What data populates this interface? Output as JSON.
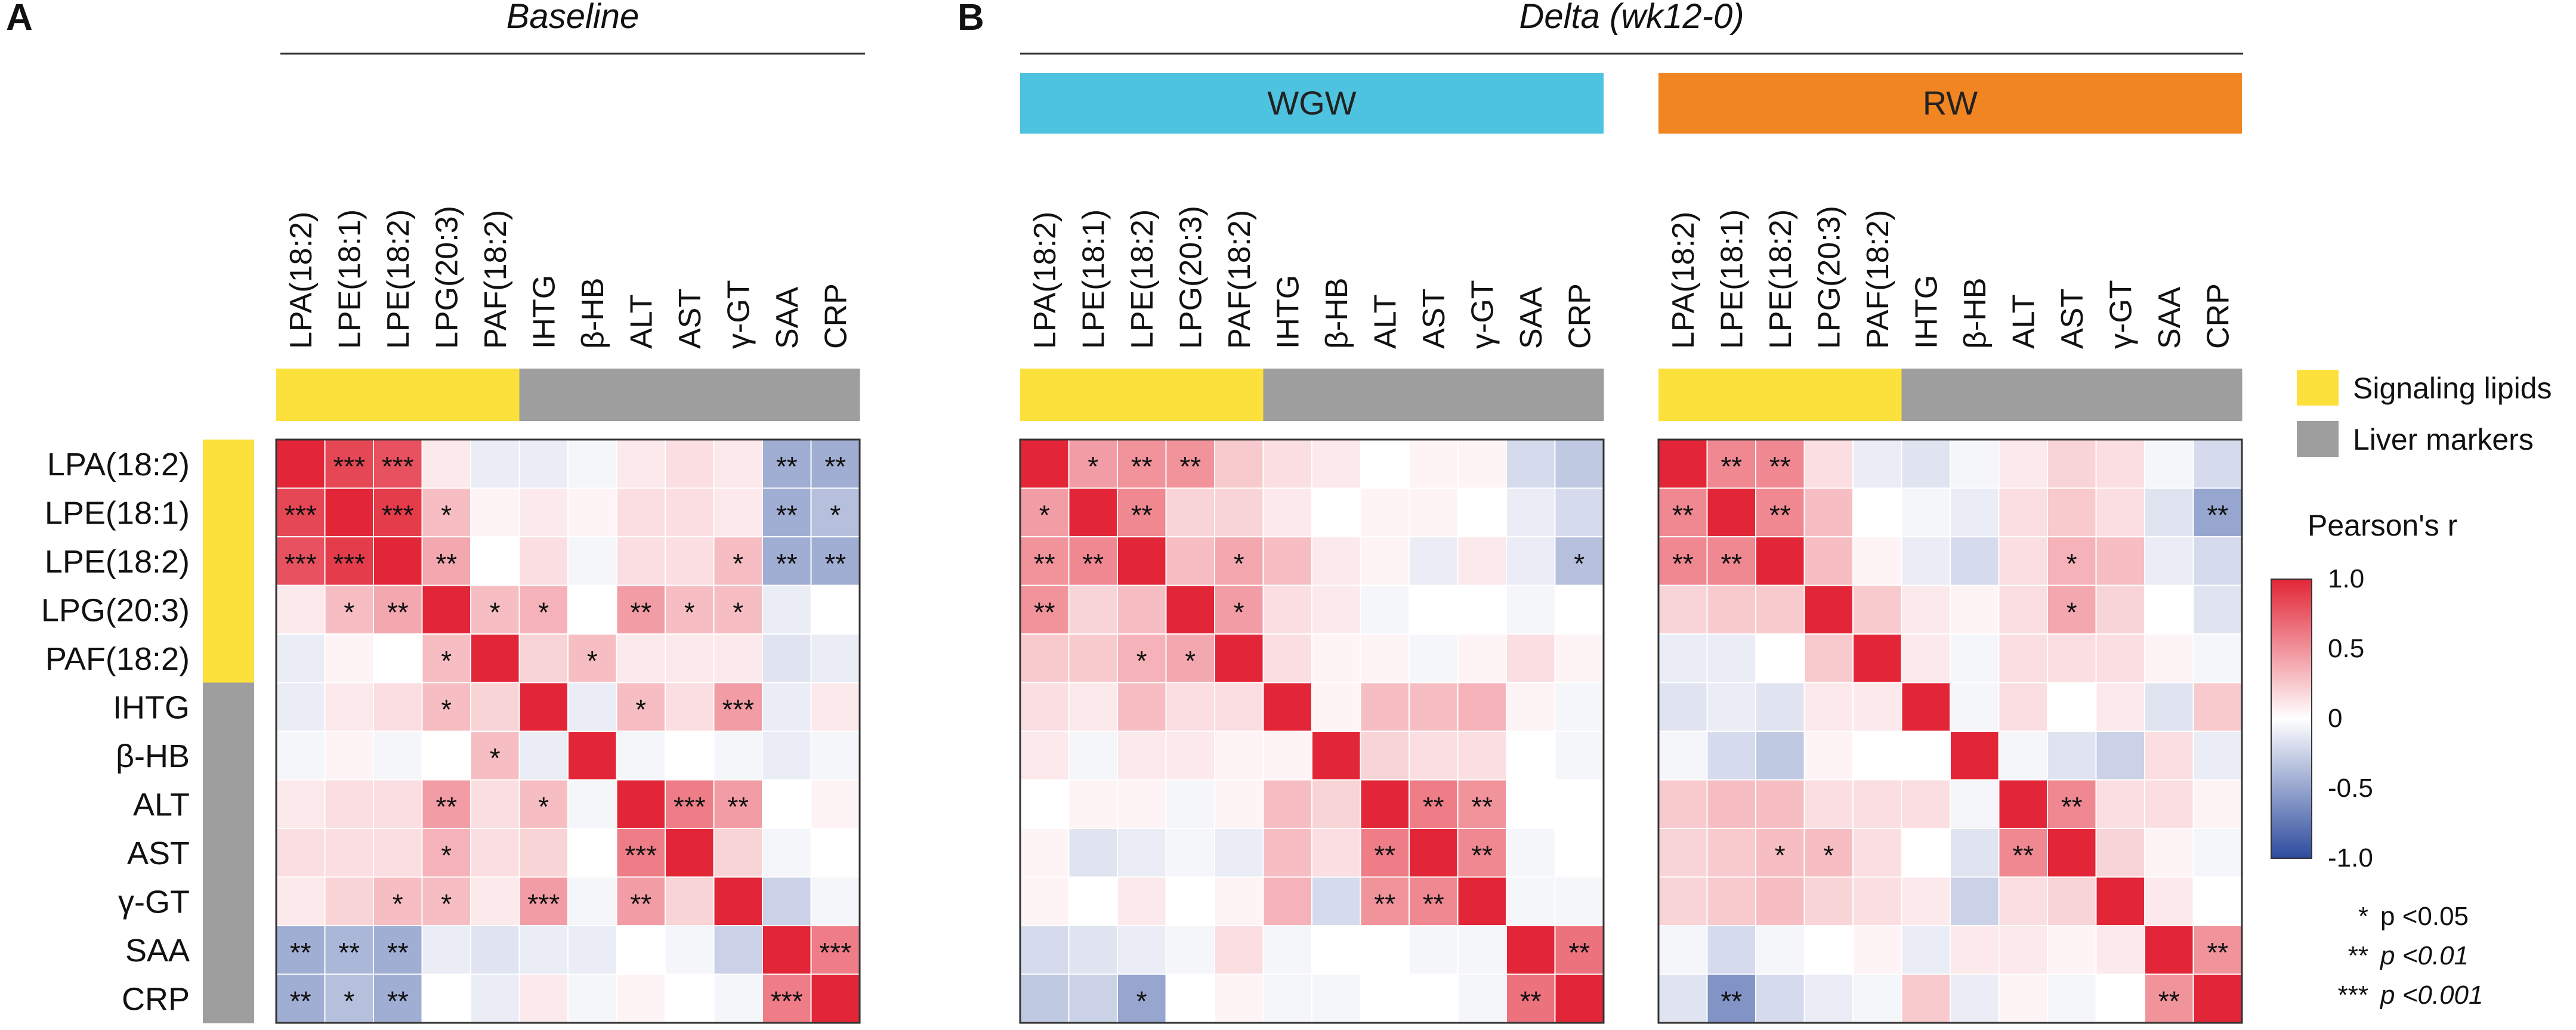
{
  "panel_labels": [
    "A",
    "B"
  ],
  "titles": {
    "baseline": "Baseline",
    "delta": "Delta (wk12-0)"
  },
  "group_labels": {
    "wgw": "WGW",
    "rw": "RW"
  },
  "colors": {
    "signaling": "#FCE13C",
    "liver": "#9E9E9E",
    "wgw": "#4EC3E0",
    "rw": "#F08522",
    "positive": "#E22637",
    "negative": "#2E4C9E",
    "grid": "#ffffff",
    "frame": "#333333"
  },
  "legend": {
    "signaling": "Signaling lipids",
    "liver": "Liver markers",
    "colorbar_title": "Pearson's r",
    "ticks": [
      "1.0",
      "0.5",
      "0",
      "-0.5",
      "-1.0"
    ],
    "sig_lines": [
      {
        "stars": "*",
        "text": "p <0.05"
      },
      {
        "stars": "**",
        "text": "p <0.01"
      },
      {
        "stars": "***",
        "text": "p <0.001"
      }
    ]
  },
  "chart_data": [
    {
      "type": "heatmap",
      "title": "Baseline",
      "variables": [
        "LPA(18:2)",
        "LPE(18:1)",
        "LPE(18:2)",
        "LPG(20:3)",
        "PAF(18:2)",
        "IHTG",
        "β-HB",
        "ALT",
        "AST",
        "γ-GT",
        "SAA",
        "CRP"
      ],
      "groups": [
        "signaling",
        "signaling",
        "signaling",
        "signaling",
        "signaling",
        "liver",
        "liver",
        "liver",
        "liver",
        "liver",
        "liver",
        "liver"
      ],
      "zlim": [
        -1,
        1
      ],
      "values": [
        [
          1.0,
          0.85,
          0.8,
          0.1,
          -0.1,
          -0.1,
          -0.05,
          0.1,
          0.15,
          0.1,
          -0.45,
          -0.45
        ],
        [
          0.85,
          1.0,
          0.9,
          0.3,
          0.05,
          0.1,
          0.05,
          0.15,
          0.15,
          0.1,
          -0.45,
          -0.35
        ],
        [
          0.8,
          0.9,
          1.0,
          0.4,
          0.0,
          0.15,
          -0.05,
          0.15,
          0.15,
          0.3,
          -0.45,
          -0.45
        ],
        [
          0.1,
          0.3,
          0.4,
          1.0,
          0.3,
          0.35,
          0.0,
          0.45,
          0.3,
          0.3,
          -0.1,
          0.0
        ],
        [
          -0.1,
          0.05,
          0.0,
          0.3,
          1.0,
          0.2,
          0.3,
          0.1,
          0.1,
          0.1,
          -0.15,
          -0.1
        ],
        [
          -0.1,
          0.1,
          0.15,
          0.3,
          0.2,
          1.0,
          -0.1,
          0.3,
          0.15,
          0.45,
          -0.1,
          0.1
        ],
        [
          -0.05,
          0.05,
          -0.05,
          0.0,
          0.3,
          -0.1,
          1.0,
          -0.05,
          0.0,
          -0.05,
          -0.1,
          -0.05
        ],
        [
          0.1,
          0.15,
          0.15,
          0.45,
          0.15,
          0.3,
          -0.05,
          1.0,
          0.6,
          0.45,
          0.0,
          0.05
        ],
        [
          0.15,
          0.15,
          0.15,
          0.35,
          0.15,
          0.2,
          0.0,
          0.6,
          1.0,
          0.2,
          -0.05,
          0.0
        ],
        [
          0.1,
          0.2,
          0.3,
          0.3,
          0.1,
          0.45,
          -0.05,
          0.45,
          0.2,
          1.0,
          -0.25,
          -0.05
        ],
        [
          -0.45,
          -0.4,
          -0.45,
          -0.1,
          -0.15,
          -0.1,
          -0.1,
          0.0,
          -0.05,
          -0.25,
          1.0,
          0.6
        ],
        [
          -0.45,
          -0.35,
          -0.45,
          0.0,
          -0.1,
          0.1,
          -0.05,
          0.05,
          0.0,
          -0.05,
          0.6,
          1.0
        ]
      ],
      "stars": [
        [
          "",
          "***",
          "***",
          "",
          "",
          "",
          "",
          "",
          "",
          "",
          "**",
          "**"
        ],
        [
          "***",
          "",
          "***",
          "*",
          "",
          "",
          "",
          "",
          "",
          "",
          "**",
          "*"
        ],
        [
          "***",
          "***",
          "",
          "**",
          "",
          "",
          "",
          "",
          "",
          "*",
          "**",
          "**"
        ],
        [
          "",
          "*",
          "**",
          "",
          "*",
          "*",
          "",
          "**",
          "*",
          "*",
          "",
          ""
        ],
        [
          "",
          "",
          "",
          "*",
          "",
          "",
          "*",
          "",
          "",
          "",
          "",
          ""
        ],
        [
          "",
          "",
          "",
          "*",
          "",
          "",
          "",
          "*",
          "",
          "***",
          "",
          ""
        ],
        [
          "",
          "",
          "",
          "",
          "*",
          "",
          "",
          "",
          "",
          "",
          "",
          ""
        ],
        [
          "",
          "",
          "",
          "**",
          "",
          "*",
          "",
          "",
          "***",
          "**",
          "",
          ""
        ],
        [
          "",
          "",
          "",
          "*",
          "",
          "",
          "",
          "***",
          "",
          "",
          "",
          ""
        ],
        [
          "",
          "",
          "*",
          "*",
          "",
          "***",
          "",
          "**",
          "",
          "",
          "",
          ""
        ],
        [
          "**",
          "**",
          "**",
          "",
          "",
          "",
          "",
          "",
          "",
          "",
          "",
          "***"
        ],
        [
          "**",
          "*",
          "**",
          "",
          "",
          "",
          "",
          "",
          "",
          "",
          "***",
          ""
        ]
      ]
    },
    {
      "type": "heatmap",
      "title": "WGW",
      "variables": [
        "LPA(18:2)",
        "LPE(18:1)",
        "LPE(18:2)",
        "LPG(20:3)",
        "PAF(18:2)",
        "IHTG",
        "β-HB",
        "ALT",
        "AST",
        "γ-GT",
        "SAA",
        "CRP"
      ],
      "groups": [
        "signaling",
        "signaling",
        "signaling",
        "signaling",
        "signaling",
        "liver",
        "liver",
        "liver",
        "liver",
        "liver",
        "liver",
        "liver"
      ],
      "zlim": [
        -1,
        1
      ],
      "values": [
        [
          1.0,
          0.45,
          0.5,
          0.5,
          0.25,
          0.15,
          0.1,
          0.0,
          0.05,
          0.05,
          -0.2,
          -0.3
        ],
        [
          0.45,
          1.0,
          0.55,
          0.2,
          0.2,
          0.1,
          0.0,
          0.05,
          0.05,
          0.0,
          -0.1,
          -0.2
        ],
        [
          0.5,
          0.55,
          1.0,
          0.3,
          0.4,
          0.3,
          0.1,
          0.05,
          -0.1,
          0.1,
          -0.1,
          -0.35
        ],
        [
          0.5,
          0.2,
          0.3,
          1.0,
          0.45,
          0.15,
          0.1,
          -0.05,
          0.0,
          0.0,
          -0.05,
          0.0
        ],
        [
          0.25,
          0.25,
          0.35,
          0.4,
          1.0,
          0.15,
          0.05,
          0.05,
          -0.05,
          0.05,
          0.15,
          0.05
        ],
        [
          0.15,
          0.1,
          0.3,
          0.15,
          0.15,
          1.0,
          0.05,
          0.3,
          0.3,
          0.35,
          0.05,
          -0.05
        ],
        [
          0.1,
          -0.05,
          0.1,
          0.1,
          0.05,
          0.05,
          1.0,
          0.2,
          0.15,
          0.15,
          0.0,
          -0.05
        ],
        [
          0.0,
          0.05,
          0.05,
          -0.05,
          0.05,
          0.3,
          0.2,
          1.0,
          0.6,
          0.5,
          0.0,
          0.0
        ],
        [
          0.05,
          -0.15,
          -0.1,
          -0.05,
          -0.1,
          0.3,
          0.15,
          0.6,
          1.0,
          0.55,
          -0.05,
          0.0
        ],
        [
          0.05,
          0.0,
          0.1,
          0.0,
          0.05,
          0.35,
          -0.2,
          0.5,
          0.55,
          1.0,
          -0.05,
          -0.05
        ],
        [
          -0.2,
          -0.15,
          -0.1,
          -0.05,
          0.15,
          -0.05,
          0.0,
          0.0,
          -0.05,
          -0.05,
          1.0,
          0.65
        ],
        [
          -0.3,
          -0.25,
          -0.5,
          0.0,
          0.05,
          -0.05,
          -0.05,
          0.0,
          0.0,
          -0.05,
          0.65,
          1.0
        ]
      ],
      "stars": [
        [
          "",
          "*",
          "**",
          "**",
          "",
          "",
          "",
          "",
          "",
          "",
          "",
          ""
        ],
        [
          "*",
          "",
          "**",
          "",
          "",
          "",
          "",
          "",
          "",
          "",
          "",
          ""
        ],
        [
          "**",
          "**",
          "",
          "",
          "*",
          "",
          "",
          "",
          "",
          "",
          "",
          "*"
        ],
        [
          "**",
          "",
          "",
          "",
          "*",
          "",
          "",
          "",
          "",
          "",
          "",
          ""
        ],
        [
          "",
          "",
          "*",
          "*",
          "",
          "",
          "",
          "",
          "",
          "",
          "",
          ""
        ],
        [
          "",
          "",
          "",
          "",
          "",
          "",
          "",
          "",
          "",
          "",
          "",
          ""
        ],
        [
          "",
          "",
          "",
          "",
          "",
          "",
          "",
          "",
          "",
          "",
          "",
          ""
        ],
        [
          "",
          "",
          "",
          "",
          "",
          "",
          "",
          "",
          "**",
          "**",
          "",
          ""
        ],
        [
          "",
          "",
          "",
          "",
          "",
          "",
          "",
          "**",
          "",
          "**",
          "",
          ""
        ],
        [
          "",
          "",
          "",
          "",
          "",
          "",
          "",
          "**",
          "**",
          "",
          "",
          ""
        ],
        [
          "",
          "",
          "",
          "",
          "",
          "",
          "",
          "",
          "",
          "",
          "",
          "**"
        ],
        [
          "",
          "",
          "*",
          "",
          "",
          "",
          "",
          "",
          "",
          "",
          "**",
          ""
        ]
      ]
    },
    {
      "type": "heatmap",
      "title": "RW",
      "variables": [
        "LPA(18:2)",
        "LPE(18:1)",
        "LPE(18:2)",
        "LPG(20:3)",
        "PAF(18:2)",
        "IHTG",
        "β-HB",
        "ALT",
        "AST",
        "γ-GT",
        "SAA",
        "CRP"
      ],
      "groups": [
        "signaling",
        "signaling",
        "signaling",
        "signaling",
        "signaling",
        "liver",
        "liver",
        "liver",
        "liver",
        "liver",
        "liver",
        "liver"
      ],
      "zlim": [
        -1,
        1
      ],
      "values": [
        [
          1.0,
          0.55,
          0.55,
          0.15,
          -0.1,
          -0.15,
          -0.05,
          0.1,
          0.2,
          0.15,
          -0.05,
          -0.2
        ],
        [
          0.55,
          1.0,
          0.55,
          0.3,
          0.0,
          -0.05,
          -0.1,
          0.15,
          0.25,
          0.15,
          -0.15,
          -0.5
        ],
        [
          0.55,
          0.55,
          1.0,
          0.3,
          0.05,
          -0.1,
          -0.2,
          0.15,
          0.35,
          0.3,
          -0.1,
          -0.2
        ],
        [
          0.2,
          0.25,
          0.25,
          1.0,
          0.25,
          0.1,
          0.05,
          0.15,
          0.4,
          0.2,
          0.0,
          -0.15
        ],
        [
          -0.1,
          -0.1,
          0.0,
          0.25,
          1.0,
          0.1,
          -0.05,
          0.15,
          0.15,
          0.15,
          0.05,
          -0.05
        ],
        [
          -0.15,
          -0.1,
          -0.15,
          0.1,
          0.1,
          1.0,
          -0.05,
          0.15,
          0.0,
          0.1,
          -0.15,
          0.25
        ],
        [
          -0.05,
          -0.2,
          -0.3,
          0.05,
          0.0,
          0.0,
          1.0,
          -0.05,
          -0.15,
          -0.25,
          0.15,
          -0.1
        ],
        [
          0.25,
          0.3,
          0.3,
          0.15,
          0.15,
          0.15,
          -0.05,
          1.0,
          0.55,
          0.15,
          0.15,
          0.05
        ],
        [
          0.2,
          0.25,
          0.3,
          0.3,
          0.15,
          0.0,
          -0.15,
          0.55,
          1.0,
          0.2,
          0.05,
          -0.05
        ],
        [
          0.2,
          0.25,
          0.3,
          0.2,
          0.15,
          0.1,
          -0.25,
          0.15,
          0.2,
          1.0,
          0.1,
          0.0
        ],
        [
          -0.05,
          -0.2,
          -0.05,
          0.0,
          0.05,
          -0.1,
          0.1,
          0.1,
          0.05,
          0.1,
          1.0,
          0.5
        ],
        [
          -0.15,
          -0.6,
          -0.2,
          -0.1,
          -0.05,
          0.25,
          -0.1,
          0.05,
          -0.05,
          0.0,
          0.5,
          1.0
        ]
      ],
      "stars": [
        [
          "",
          "**",
          "**",
          "",
          "",
          "",
          "",
          "",
          "",
          "",
          "",
          ""
        ],
        [
          "**",
          "",
          "**",
          "",
          "",
          "",
          "",
          "",
          "",
          "",
          "",
          "**"
        ],
        [
          "**",
          "**",
          "",
          "",
          "",
          "",
          "",
          "",
          "*",
          "",
          "",
          ""
        ],
        [
          "",
          "",
          "",
          "",
          "",
          "",
          "",
          "",
          "*",
          "",
          "",
          ""
        ],
        [
          "",
          "",
          "",
          "",
          "",
          "",
          "",
          "",
          "",
          "",
          "",
          ""
        ],
        [
          "",
          "",
          "",
          "",
          "",
          "",
          "",
          "",
          "",
          "",
          "",
          ""
        ],
        [
          "",
          "",
          "",
          "",
          "",
          "",
          "",
          "",
          "",
          "",
          "",
          ""
        ],
        [
          "",
          "",
          "",
          "",
          "",
          "",
          "",
          "",
          "**",
          "",
          "",
          ""
        ],
        [
          "",
          "",
          "*",
          "*",
          "",
          "",
          "",
          "**",
          "",
          "",
          "",
          ""
        ],
        [
          "",
          "",
          "",
          "",
          "",
          "",
          "",
          "",
          "",
          "",
          "",
          ""
        ],
        [
          "",
          "",
          "",
          "",
          "",
          "",
          "",
          "",
          "",
          "",
          "",
          "**"
        ],
        [
          "",
          "**",
          "",
          "",
          "",
          "",
          "",
          "",
          "",
          "",
          "**",
          ""
        ]
      ]
    }
  ]
}
